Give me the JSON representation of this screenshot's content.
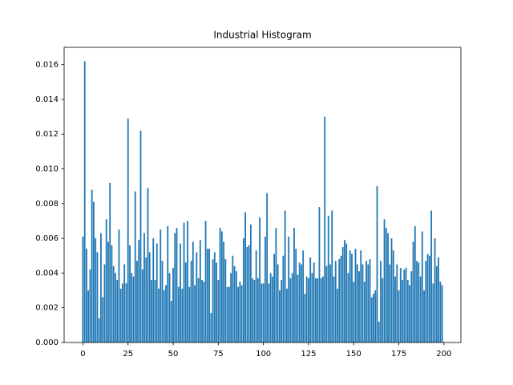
{
  "chart_data": {
    "type": "bar",
    "title": "Industrial Histogram",
    "color": "#1f77b4",
    "x": [
      0,
      1,
      2,
      3,
      4,
      5,
      6,
      7,
      8,
      9,
      10,
      11,
      12,
      13,
      14,
      15,
      16,
      17,
      18,
      19,
      20,
      21,
      22,
      23,
      24,
      25,
      26,
      27,
      28,
      29,
      30,
      31,
      32,
      33,
      34,
      35,
      36,
      37,
      38,
      39,
      40,
      41,
      42,
      43,
      44,
      45,
      46,
      47,
      48,
      49,
      50,
      51,
      52,
      53,
      54,
      55,
      56,
      57,
      58,
      59,
      60,
      61,
      62,
      63,
      64,
      65,
      66,
      67,
      68,
      69,
      70,
      71,
      72,
      73,
      74,
      75,
      76,
      77,
      78,
      79,
      80,
      81,
      82,
      83,
      84,
      85,
      86,
      87,
      88,
      89,
      90,
      91,
      92,
      93,
      94,
      95,
      96,
      97,
      98,
      99,
      100,
      101,
      102,
      103,
      104,
      105,
      106,
      107,
      108,
      109,
      110,
      111,
      112,
      113,
      114,
      115,
      116,
      117,
      118,
      119,
      120,
      121,
      122,
      123,
      124,
      125,
      126,
      127,
      128,
      129,
      130,
      131,
      132,
      133,
      134,
      135,
      136,
      137,
      138,
      139,
      140,
      141,
      142,
      143,
      144,
      145,
      146,
      147,
      148,
      149,
      150,
      151,
      152,
      153,
      154,
      155,
      156,
      157,
      158,
      159,
      160,
      161,
      162,
      163,
      164,
      165,
      166,
      167,
      168,
      169,
      170,
      171,
      172,
      173,
      174,
      175,
      176,
      177,
      178,
      179,
      180,
      181,
      182,
      183,
      184,
      185,
      186,
      187,
      188,
      189,
      190,
      191,
      192,
      193,
      194,
      195,
      196,
      197,
      198,
      199
    ],
    "values": [
      0.0061,
      0.0162,
      0.0054,
      0.003,
      0.0042,
      0.0088,
      0.0081,
      0.006,
      0.0052,
      0.0014,
      0.0063,
      0.0026,
      0.0045,
      0.0071,
      0.0058,
      0.0092,
      0.0056,
      0.0044,
      0.004,
      0.0036,
      0.0065,
      0.0031,
      0.0034,
      0.0045,
      0.0034,
      0.0129,
      0.0056,
      0.004,
      0.0038,
      0.0087,
      0.0047,
      0.0059,
      0.0122,
      0.0042,
      0.0063,
      0.0049,
      0.0089,
      0.0052,
      0.0036,
      0.006,
      0.0036,
      0.0057,
      0.0031,
      0.0065,
      0.0047,
      0.003,
      0.0033,
      0.0067,
      0.004,
      0.0024,
      0.0043,
      0.0063,
      0.0066,
      0.0032,
      0.0057,
      0.0031,
      0.0069,
      0.0046,
      0.007,
      0.0032,
      0.0047,
      0.0058,
      0.0033,
      0.0052,
      0.0037,
      0.0059,
      0.0036,
      0.0035,
      0.007,
      0.0054,
      0.0054,
      0.0017,
      0.0048,
      0.0052,
      0.0046,
      0.0036,
      0.0066,
      0.0064,
      0.0058,
      0.0048,
      0.0032,
      0.0032,
      0.004,
      0.005,
      0.0044,
      0.0041,
      0.0032,
      0.0035,
      0.0033,
      0.006,
      0.0075,
      0.0055,
      0.0056,
      0.0068,
      0.0037,
      0.0036,
      0.0053,
      0.0037,
      0.0072,
      0.0034,
      0.0034,
      0.0061,
      0.0086,
      0.0034,
      0.004,
      0.0038,
      0.0051,
      0.0066,
      0.0045,
      0.003,
      0.0036,
      0.005,
      0.0076,
      0.0031,
      0.0061,
      0.0037,
      0.004,
      0.0066,
      0.0054,
      0.0039,
      0.0046,
      0.0045,
      0.0053,
      0.0028,
      0.0038,
      0.0037,
      0.0049,
      0.004,
      0.0046,
      0.0037,
      0.0037,
      0.0078,
      0.0037,
      0.0038,
      0.013,
      0.0044,
      0.0073,
      0.0045,
      0.0076,
      0.0038,
      0.0047,
      0.0031,
      0.0048,
      0.005,
      0.0055,
      0.0059,
      0.0057,
      0.004,
      0.0053,
      0.0051,
      0.0035,
      0.0054,
      0.0045,
      0.0041,
      0.0053,
      0.0045,
      0.0035,
      0.0047,
      0.0045,
      0.0048,
      0.0026,
      0.0028,
      0.003,
      0.009,
      0.0012,
      0.0047,
      0.0037,
      0.0071,
      0.0066,
      0.0063,
      0.0045,
      0.006,
      0.0053,
      0.0038,
      0.0045,
      0.003,
      0.0043,
      0.0036,
      0.0042,
      0.0043,
      0.0036,
      0.0033,
      0.0041,
      0.0058,
      0.0067,
      0.0047,
      0.0046,
      0.0038,
      0.0064,
      0.003,
      0.0047,
      0.0051,
      0.005,
      0.0076,
      0.0034,
      0.006,
      0.0044,
      0.0049,
      0.0035,
      0.0033
    ],
    "xlim": [
      -10.4,
      209.4
    ],
    "xticks": [
      0,
      25,
      50,
      75,
      100,
      125,
      150,
      175,
      200
    ],
    "ylim": [
      0,
      0.017
    ],
    "yticks": [
      {
        "value": 0,
        "label": "0.000"
      },
      {
        "value": 0.002,
        "label": "0.002"
      },
      {
        "value": 0.004,
        "label": "0.004"
      },
      {
        "value": 0.006,
        "label": "0.006"
      },
      {
        "value": 0.008,
        "label": "0.008"
      },
      {
        "value": 0.01,
        "label": "0.010"
      },
      {
        "value": 0.012,
        "label": "0.012"
      },
      {
        "value": 0.014,
        "label": "0.014"
      },
      {
        "value": 0.016,
        "label": "0.016"
      }
    ]
  }
}
